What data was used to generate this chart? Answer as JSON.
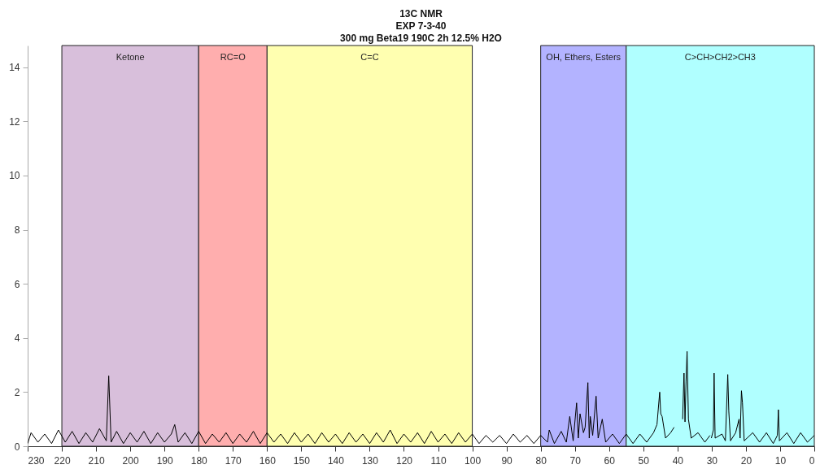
{
  "chart_data": {
    "type": "line",
    "title": "13C NMR\nEXP 7-3-40\n300 mg Beta19 190C 2h 12.5% H2O",
    "xlim": [
      230,
      0
    ],
    "xticks": [
      230,
      220,
      210,
      200,
      190,
      180,
      170,
      160,
      150,
      140,
      130,
      120,
      110,
      100,
      90,
      80,
      70,
      60,
      50,
      40,
      30,
      20,
      10,
      0
    ],
    "ylim": [
      0,
      14.8
    ],
    "yticks": [
      0,
      2,
      4,
      6,
      8,
      10,
      12,
      14
    ],
    "grid": false,
    "bands": [
      {
        "axis": "x",
        "from": 220,
        "to": 180,
        "label": "Ketone",
        "color": "#d8bfdb"
      },
      {
        "axis": "x",
        "from": 180,
        "to": 160,
        "label": "RC=O",
        "color": "#ffaeae"
      },
      {
        "axis": "x",
        "from": 160,
        "to": 100,
        "label": "C=C",
        "color": "#ffffb0"
      },
      {
        "axis": "x",
        "from": 80,
        "to": 55,
        "label": "OH, Ethers, Esters",
        "color": "#b3b3ff"
      },
      {
        "axis": "x",
        "from": 55,
        "to": 0,
        "label": "C>CH>CH2>CH3",
        "color": "#b0ffff"
      }
    ],
    "series": [
      {
        "color": "#000000",
        "x": [
          230,
          229,
          227,
          225,
          223,
          221,
          219,
          217,
          215,
          213,
          211,
          209,
          207,
          206.3,
          205.6,
          204,
          202,
          200,
          198,
          196,
          194,
          192,
          190,
          188,
          187,
          186,
          184,
          182,
          180,
          178,
          176,
          174,
          172,
          170,
          168,
          166,
          164,
          162,
          160,
          158,
          156,
          154,
          152,
          150,
          148,
          146,
          144,
          142,
          140,
          138,
          136,
          134,
          132,
          130,
          128,
          126,
          124,
          122,
          120,
          118,
          116,
          114,
          112,
          110,
          108,
          106,
          104,
          102,
          100,
          98,
          96,
          94,
          92,
          90,
          88,
          86,
          84,
          82,
          80,
          78,
          77.5,
          76,
          74,
          72.5,
          71.5,
          70.5,
          69.5,
          69,
          68.5,
          67.5,
          67,
          66.2,
          65.8,
          65.5,
          64.8,
          63.8,
          63.2,
          62,
          61,
          59,
          57,
          55,
          53,
          51,
          49,
          47,
          46,
          45.2,
          44.9,
          44.5,
          43.5,
          42,
          41,
          40.3,
          39.5,
          38.8,
          38.5,
          38.1,
          37.8,
          37.5,
          37.2,
          36.8,
          36,
          34,
          32,
          30.5,
          30.3,
          30.1,
          29.5,
          29.3,
          29,
          27,
          26,
          25.3,
          25,
          24.5,
          23,
          22,
          21.7,
          21.3,
          21,
          20.5,
          18,
          16,
          14,
          12,
          10.8,
          10.5,
          10.2,
          8,
          6,
          4,
          2,
          0
        ],
        "values": [
          0.1,
          0.5,
          0.15,
          0.45,
          0.1,
          0.6,
          0.15,
          0.55,
          0.1,
          0.5,
          0.15,
          0.65,
          0.2,
          2.6,
          0.15,
          0.55,
          0.1,
          0.5,
          0.15,
          0.55,
          0.1,
          0.5,
          0.15,
          0.45,
          0.8,
          0.15,
          0.5,
          0.1,
          0.55,
          0.1,
          0.45,
          0.15,
          0.5,
          0.1,
          0.45,
          0.15,
          0.55,
          0.1,
          0.5,
          0.15,
          0.45,
          0.1,
          0.5,
          0.15,
          0.45,
          0.1,
          0.5,
          0.15,
          0.45,
          0.1,
          0.5,
          0.15,
          0.45,
          0.1,
          0.5,
          0.15,
          0.6,
          0.1,
          0.45,
          0.15,
          0.5,
          0.1,
          0.55,
          0.15,
          0.45,
          0.1,
          0.5,
          0.15,
          0.45,
          0.1,
          0.4,
          0.15,
          0.4,
          0.1,
          0.45,
          0.15,
          0.4,
          0.1,
          0.4,
          0.15,
          0.6,
          0.1,
          0.55,
          0.15,
          1.1,
          0.2,
          1.6,
          0.3,
          1.2,
          0.5,
          0.7,
          2.35,
          0.3,
          1.1,
          0.4,
          1.85,
          0.3,
          1.0,
          0.15,
          0.45,
          0.1,
          0.45,
          0.1,
          0.45,
          0.15,
          0.5,
          0.8,
          2.0,
          1.2,
          1.1,
          0.3,
          0.5,
          0.7,
          null,
          null,
          null,
          1.0,
          2.7,
          0.9,
          2.4,
          3.5,
          1.0,
          0.3,
          0.5,
          0.15,
          0.4,
          null,
          0.3,
          0.6,
          2.7,
          0.3,
          0.45,
          0.2,
          2.65,
          1.3,
          0.2,
          0.5,
          1.0,
          0.3,
          2.05,
          1.6,
          0.2,
          0.5,
          0.15,
          0.5,
          0.1,
          0.4,
          1.35,
          0.2,
          0.5,
          0.1,
          0.5,
          0.15,
          0.4
        ]
      }
    ]
  }
}
